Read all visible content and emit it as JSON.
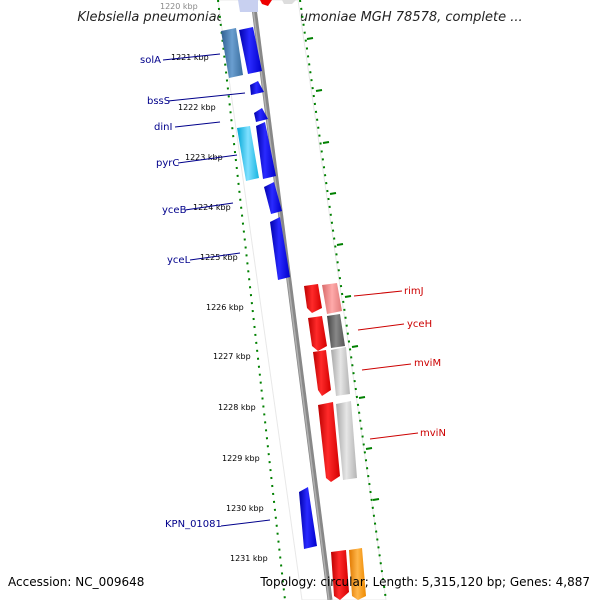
{
  "title": "Klebsiella pneumoniae subsp. pneumoniae MGH 78578, complete ...",
  "accession": "Accession: NC_009648",
  "topology": "Topology: circular; Length: 5,315,120 bp; Genes: 4,887",
  "kbp_labels": [
    "1220 kbp",
    "1221 kbp",
    "1222 kbp",
    "1223 kbp",
    "1224 kbp",
    "1225 kbp",
    "1226 kbp",
    "1227 kbp",
    "1228 kbp",
    "1229 kbp",
    "1230 kbp",
    "1231 kbp"
  ],
  "genes_left": [
    "solA",
    "bssS",
    "dinI",
    "pyrC",
    "yceB",
    "yceL",
    "KPN_01081"
  ],
  "genes_right": [
    "rimJ",
    "yceH",
    "mviM",
    "mviN"
  ],
  "colors": {
    "label_left": "#00008b",
    "label_right": "#cc0000",
    "ticks": "#008000",
    "backbone": "#888888",
    "gene_blue": "#0000ee",
    "gene_red": "#ee0000"
  }
}
